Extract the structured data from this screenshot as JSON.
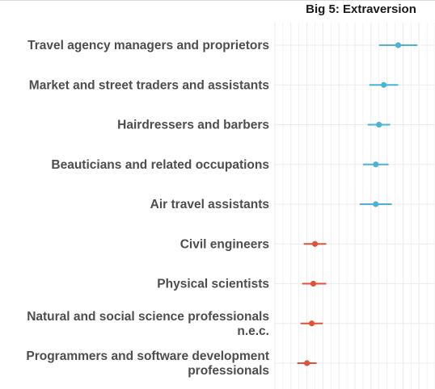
{
  "chart_data": {
    "type": "scatter",
    "title": "Big 5: Extraversion",
    "xlabel": "",
    "ylabel": "",
    "grid": true,
    "legend": "none",
    "colors": {
      "high": "#4ab3d6",
      "low": "#e2503a",
      "grid": "#ebebeb"
    },
    "xlim": [
      0,
      10
    ],
    "categories": [
      {
        "label": [
          "Travel agency managers and proprietors"
        ],
        "estimate": 7.7,
        "lo": 6.5,
        "hi": 8.9,
        "group": "high"
      },
      {
        "label": [
          "Market and street traders and assistants"
        ],
        "estimate": 6.8,
        "lo": 5.9,
        "hi": 7.7,
        "group": "high"
      },
      {
        "label": [
          "Hairdressers and barbers"
        ],
        "estimate": 6.5,
        "lo": 5.8,
        "hi": 7.2,
        "group": "high"
      },
      {
        "label": [
          "Beauticians and related occupations"
        ],
        "estimate": 6.3,
        "lo": 5.5,
        "hi": 7.1,
        "group": "high"
      },
      {
        "label": [
          "Air travel assistants"
        ],
        "estimate": 6.3,
        "lo": 5.3,
        "hi": 7.3,
        "group": "high"
      },
      {
        "label": [
          "Civil engineers"
        ],
        "estimate": 2.5,
        "lo": 1.8,
        "hi": 3.2,
        "group": "low"
      },
      {
        "label": [
          "Physical scientists"
        ],
        "estimate": 2.4,
        "lo": 1.7,
        "hi": 3.2,
        "group": "low"
      },
      {
        "label": [
          "Natural and social science professionals",
          "n.e.c."
        ],
        "estimate": 2.3,
        "lo": 1.6,
        "hi": 3.0,
        "group": "low"
      },
      {
        "label": [
          "Programmers and software development",
          "professionals"
        ],
        "estimate": 2.0,
        "lo": 1.4,
        "hi": 2.6,
        "group": "low"
      }
    ]
  }
}
